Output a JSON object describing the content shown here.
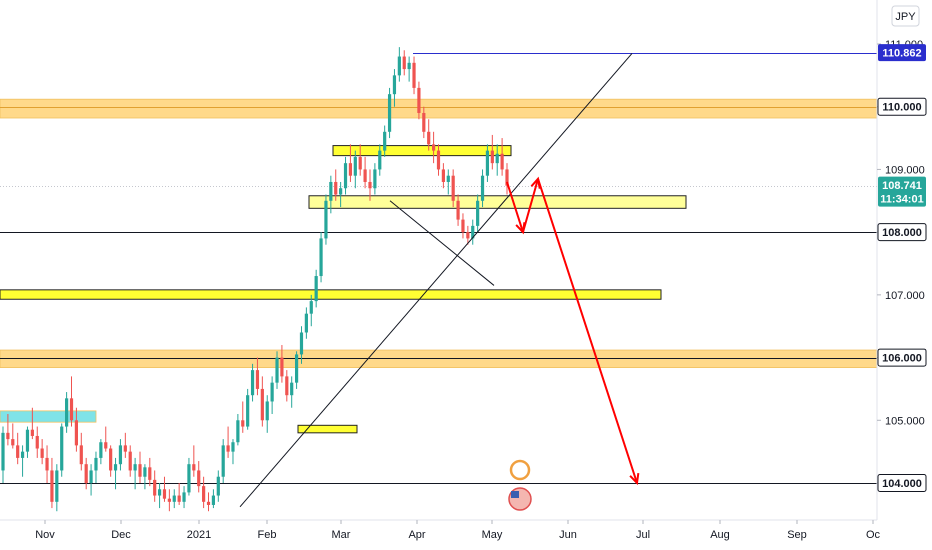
{
  "chart_data": {
    "type": "candlestick",
    "symbol_currency": "JPY",
    "x_ticks": [
      "Nov",
      "Dec",
      "2021",
      "Feb",
      "Mar",
      "Apr",
      "May",
      "Jun",
      "Jul",
      "Aug",
      "Sep",
      "Oc"
    ],
    "y_ticks": [
      "111.000",
      "110.000",
      "109.000",
      "108.000",
      "107.000",
      "106.000",
      "105.000",
      "104.000"
    ],
    "ylim": [
      103.55,
      111.75
    ],
    "price_labels": [
      {
        "name": "high",
        "value": 110.862,
        "text": "110.862",
        "bg": "#2a2ecd",
        "fg": "#ffffff"
      },
      {
        "name": "level-110",
        "value": 110.0,
        "text": "110.000",
        "bg": "#ffffff",
        "fg": "#131722",
        "border": "#131722"
      },
      {
        "name": "last",
        "value": 108.741,
        "text": "108.741",
        "sub": "11:34:01",
        "bg": "#26a69a",
        "fg": "#ffffff"
      },
      {
        "name": "level-108",
        "value": 108.0,
        "text": "108.000",
        "bg": "#ffffff",
        "fg": "#131722",
        "border": "#131722"
      },
      {
        "name": "level-106",
        "value": 106.0,
        "text": "106.000",
        "bg": "#ffffff",
        "fg": "#131722",
        "border": "#131722"
      },
      {
        "name": "level-104",
        "value": 104.0,
        "text": "104.000",
        "bg": "#ffffff",
        "fg": "#131722",
        "border": "#131722"
      }
    ],
    "horizontal_lines": [
      {
        "name": "line-108",
        "value": 108.0,
        "color": "#131722"
      },
      {
        "name": "line-106",
        "value": 106.0,
        "color": "#131722"
      },
      {
        "name": "line-104",
        "value": 104.0,
        "color": "#131722"
      },
      {
        "name": "line-110",
        "value": 110.0,
        "color": "#e0a030"
      },
      {
        "name": "line-high",
        "value": 110.862,
        "color": "#2a2ecd"
      },
      {
        "name": "line-last",
        "value": 108.741,
        "color": "#b2b5be"
      }
    ],
    "zones": [
      {
        "name": "zone-110",
        "top": 110.12,
        "bottom": 109.82,
        "color": "#ffd98a"
      },
      {
        "name": "zone-106",
        "top": 106.12,
        "bottom": 105.84,
        "color": "#ffd98a"
      },
      {
        "name": "zone-107",
        "top": 107.08,
        "bottom": 106.93,
        "color": "#ffff33"
      },
      {
        "name": "zone-109-3",
        "top": 109.38,
        "bottom": 109.22,
        "color": "#ffff33"
      },
      {
        "name": "zone-108-5",
        "top": 108.58,
        "bottom": 108.38,
        "color": "#ffff99"
      },
      {
        "name": "zone-104-9",
        "top": 104.92,
        "bottom": 104.8,
        "color": "#ffff33"
      },
      {
        "name": "zone-105-1",
        "top": 105.15,
        "bottom": 104.97,
        "color": "#7fe3e8"
      }
    ],
    "colors": {
      "up": "#26a69a",
      "down": "#ef5350",
      "projection": "#ff0000",
      "trendline": "#131722"
    },
    "candles": [
      [
        104.2,
        104.9,
        104.0,
        104.8
      ],
      [
        104.8,
        105.1,
        104.6,
        104.7
      ],
      [
        104.7,
        104.95,
        104.55,
        104.6
      ],
      [
        104.6,
        104.8,
        104.3,
        104.4
      ],
      [
        104.4,
        104.6,
        104.1,
        104.5
      ],
      [
        104.5,
        104.9,
        104.4,
        104.85
      ],
      [
        104.85,
        105.2,
        104.7,
        104.75
      ],
      [
        104.75,
        104.9,
        104.4,
        104.55
      ],
      [
        104.55,
        104.7,
        104.3,
        104.4
      ],
      [
        104.4,
        104.6,
        104.0,
        104.2
      ],
      [
        104.2,
        104.4,
        103.6,
        103.7
      ],
      [
        103.7,
        104.3,
        103.55,
        104.2
      ],
      [
        104.2,
        104.95,
        104.1,
        104.9
      ],
      [
        104.9,
        105.45,
        104.8,
        105.35
      ],
      [
        105.35,
        105.7,
        104.9,
        105.0
      ],
      [
        105.0,
        105.2,
        104.5,
        104.6
      ],
      [
        104.6,
        104.8,
        104.2,
        104.3
      ],
      [
        104.3,
        104.4,
        103.9,
        104.0
      ],
      [
        104.0,
        104.3,
        103.8,
        104.2
      ],
      [
        104.2,
        104.5,
        104.0,
        104.4
      ],
      [
        104.4,
        104.7,
        104.3,
        104.65
      ],
      [
        104.65,
        104.9,
        104.5,
        104.55
      ],
      [
        104.55,
        104.6,
        104.1,
        104.2
      ],
      [
        104.2,
        104.4,
        103.9,
        104.3
      ],
      [
        104.3,
        104.7,
        104.2,
        104.6
      ],
      [
        104.6,
        104.8,
        104.4,
        104.5
      ],
      [
        104.5,
        104.6,
        104.1,
        104.2
      ],
      [
        104.2,
        104.4,
        103.9,
        104.3
      ],
      [
        104.3,
        104.5,
        104.0,
        104.1
      ],
      [
        104.1,
        104.3,
        103.9,
        104.25
      ],
      [
        104.25,
        104.4,
        103.95,
        104.05
      ],
      [
        104.05,
        104.2,
        103.7,
        103.8
      ],
      [
        103.8,
        104.0,
        103.6,
        103.9
      ],
      [
        103.9,
        104.1,
        103.7,
        103.75
      ],
      [
        103.75,
        103.9,
        103.55,
        103.7
      ],
      [
        103.7,
        103.9,
        103.6,
        103.8
      ],
      [
        103.8,
        104.0,
        103.65,
        103.7
      ],
      [
        103.7,
        103.95,
        103.6,
        103.85
      ],
      [
        103.85,
        104.4,
        103.8,
        104.3
      ],
      [
        104.3,
        104.6,
        104.1,
        104.2
      ],
      [
        104.2,
        104.35,
        103.85,
        103.95
      ],
      [
        103.95,
        104.1,
        103.6,
        103.7
      ],
      [
        103.7,
        103.85,
        103.55,
        103.65
      ],
      [
        103.65,
        103.9,
        103.6,
        103.8
      ],
      [
        103.8,
        104.2,
        103.7,
        104.1
      ],
      [
        104.1,
        104.7,
        104.0,
        104.6
      ],
      [
        104.6,
        104.9,
        104.4,
        104.5
      ],
      [
        104.5,
        104.7,
        104.3,
        104.65
      ],
      [
        104.65,
        105.1,
        104.6,
        105.0
      ],
      [
        105.0,
        105.3,
        104.8,
        104.9
      ],
      [
        104.9,
        105.5,
        104.85,
        105.4
      ],
      [
        105.4,
        105.9,
        105.3,
        105.8
      ],
      [
        105.8,
        106.0,
        105.4,
        105.5
      ],
      [
        105.5,
        105.7,
        104.9,
        105.0
      ],
      [
        105.0,
        105.4,
        104.8,
        105.3
      ],
      [
        105.3,
        105.7,
        105.1,
        105.6
      ],
      [
        105.6,
        106.1,
        105.5,
        106.0
      ],
      [
        106.0,
        106.2,
        105.6,
        105.7
      ],
      [
        105.7,
        105.8,
        105.3,
        105.4
      ],
      [
        105.4,
        105.7,
        105.2,
        105.6
      ],
      [
        105.6,
        106.1,
        105.5,
        106.05
      ],
      [
        106.05,
        106.5,
        105.9,
        106.4
      ],
      [
        106.4,
        106.8,
        106.3,
        106.7
      ],
      [
        106.7,
        107.0,
        106.5,
        106.9
      ],
      [
        106.9,
        107.4,
        106.8,
        107.3
      ],
      [
        107.3,
        108.0,
        107.2,
        107.9
      ],
      [
        107.9,
        108.6,
        107.8,
        108.5
      ],
      [
        108.5,
        108.9,
        108.3,
        108.8
      ],
      [
        108.8,
        109.0,
        108.5,
        108.6
      ],
      [
        108.6,
        108.8,
        108.4,
        108.7
      ],
      [
        108.7,
        109.2,
        108.6,
        109.1
      ],
      [
        109.1,
        109.4,
        108.8,
        108.9
      ],
      [
        108.9,
        109.3,
        108.7,
        109.2
      ],
      [
        109.2,
        109.4,
        108.9,
        109.0
      ],
      [
        109.0,
        109.2,
        108.7,
        108.8
      ],
      [
        108.8,
        109.0,
        108.5,
        108.7
      ],
      [
        108.7,
        109.1,
        108.6,
        109.0
      ],
      [
        109.0,
        109.4,
        108.9,
        109.3
      ],
      [
        109.3,
        109.7,
        109.2,
        109.6
      ],
      [
        109.6,
        110.3,
        109.5,
        110.2
      ],
      [
        110.2,
        110.6,
        110.0,
        110.5
      ],
      [
        110.5,
        110.95,
        110.4,
        110.8
      ],
      [
        110.8,
        110.9,
        110.5,
        110.6
      ],
      [
        110.6,
        110.8,
        110.4,
        110.7
      ],
      [
        110.7,
        110.8,
        110.2,
        110.3
      ],
      [
        110.3,
        110.4,
        109.8,
        109.9
      ],
      [
        109.9,
        110.0,
        109.5,
        109.6
      ],
      [
        109.6,
        109.8,
        109.3,
        109.4
      ],
      [
        109.4,
        109.6,
        109.1,
        109.3
      ],
      [
        109.3,
        109.4,
        108.9,
        109.0
      ],
      [
        109.0,
        109.1,
        108.7,
        108.8
      ],
      [
        108.8,
        109.0,
        108.6,
        108.9
      ],
      [
        108.9,
        109.0,
        108.4,
        108.5
      ],
      [
        108.5,
        108.6,
        108.1,
        108.2
      ],
      [
        108.2,
        108.3,
        107.9,
        108.0
      ],
      [
        108.0,
        108.1,
        107.8,
        107.9
      ],
      [
        107.9,
        108.2,
        107.8,
        108.1
      ],
      [
        108.1,
        108.6,
        108.0,
        108.5
      ],
      [
        108.5,
        109.0,
        108.4,
        108.9
      ],
      [
        108.9,
        109.4,
        108.8,
        109.3
      ],
      [
        109.3,
        109.55,
        109.0,
        109.1
      ],
      [
        109.1,
        109.4,
        108.9,
        109.25
      ],
      [
        109.25,
        109.5,
        108.9,
        109.0
      ],
      [
        109.0,
        109.1,
        108.6,
        108.741
      ]
    ],
    "trendlines": [
      {
        "name": "rising-trendline",
        "from": [
          240,
          103.62
        ],
        "to": [
          632,
          110.85
        ]
      },
      {
        "name": "falling-neckline",
        "from": [
          390,
          108.5
        ],
        "to": [
          494,
          107.15
        ]
      }
    ],
    "projection": [
      {
        "name": "projection-drop-1",
        "points": [
          [
            507,
            108.8
          ],
          [
            523,
            108.0
          ]
        ],
        "arrow": true
      },
      {
        "name": "projection-bounce",
        "points": [
          [
            523,
            108.0
          ],
          [
            538,
            108.85
          ]
        ],
        "arrow": true
      },
      {
        "name": "projection-drop-2",
        "points": [
          [
            538,
            108.85
          ],
          [
            637,
            104.0
          ]
        ],
        "arrow": true
      }
    ]
  }
}
